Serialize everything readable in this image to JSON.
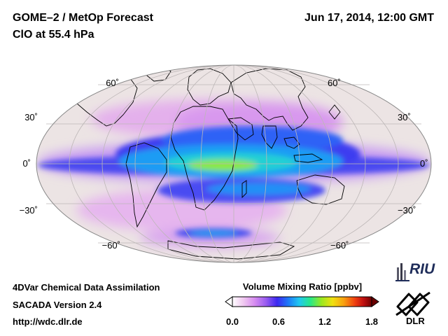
{
  "header": {
    "title_line1": "GOME–2 / MetOp Forecast",
    "title_line2": "ClO at 55.4 hPa",
    "datetime": "Jun 17, 2014, 12:00 GMT"
  },
  "map": {
    "projection": "mollweide",
    "lat_labels_left": [
      "60˚",
      "30˚",
      "0˚",
      "−30˚",
      "−60˚"
    ],
    "lat_labels_right": [
      "60˚",
      "30˚",
      "0˚",
      "−30˚",
      "−60˚"
    ],
    "lat_values": [
      60,
      30,
      0,
      -30,
      -60
    ],
    "background_color": "#ece4e4",
    "grid_color": "#bdb7b7"
  },
  "colorbar": {
    "title": "Volume Mixing Ratio [ppbv]",
    "ticks": [
      "0.0",
      "0.6",
      "1.2",
      "1.8"
    ],
    "min": 0.0,
    "max": 1.8,
    "colors": [
      "#ffffff",
      "#f0c8f0",
      "#d68cf0",
      "#9a5cf0",
      "#3c28f0",
      "#1e78f8",
      "#20c8f0",
      "#28e888",
      "#9ce820",
      "#f0e010",
      "#f8a010",
      "#f04010",
      "#c01010",
      "#700000"
    ]
  },
  "footer": {
    "line1": "4DVar Chemical Data Assimilation",
    "line2": "SACADA Version 2.4",
    "line3": "http://wdc.dlr.de"
  },
  "logos": {
    "riu": "RIU",
    "dlr": "DLR"
  }
}
